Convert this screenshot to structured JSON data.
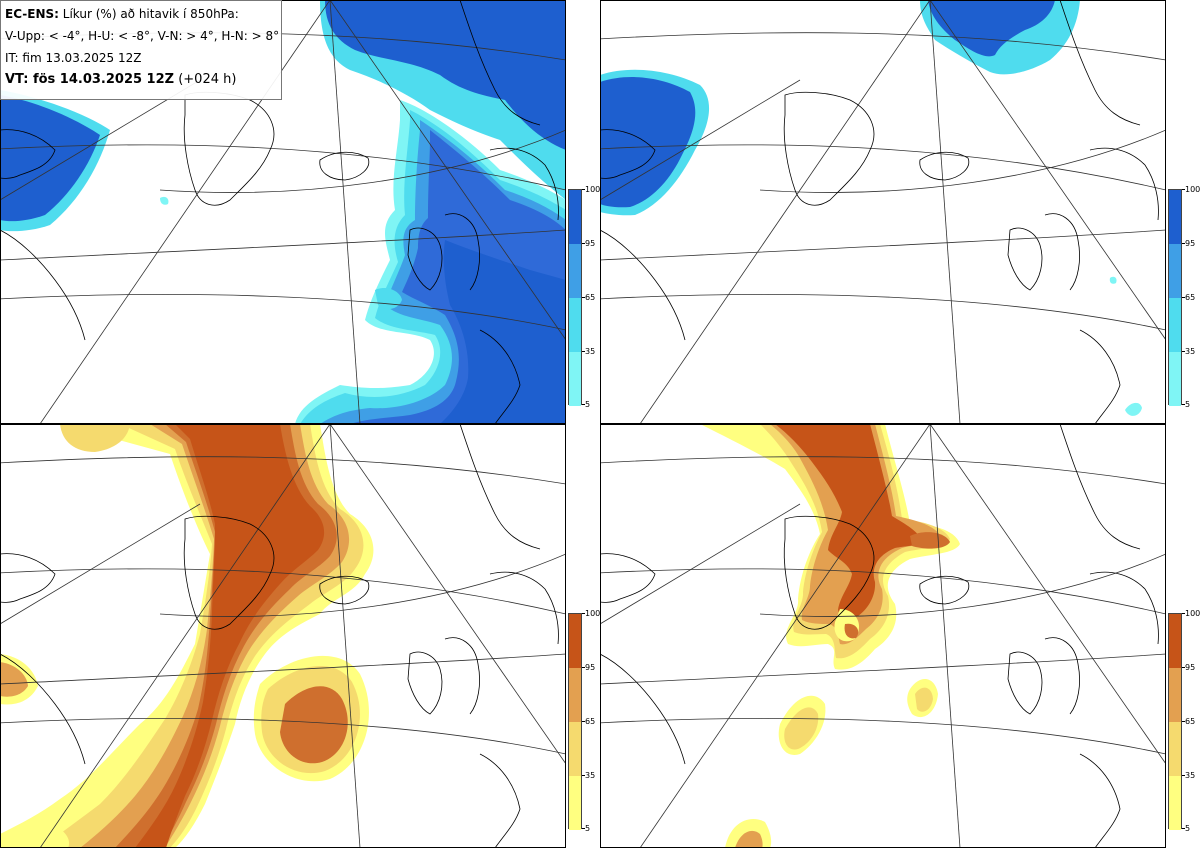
{
  "info": {
    "model": "EC-ENS:",
    "title": "Líkur (%) að hitavik í 850hPa:",
    "thresholds": "V-Upp: < -4°, H-U: < -8°, V-N: > 4°, H-N: > 8°",
    "init_time": "IT: fim 13.03.2025 12Z",
    "valid_label": "VT: fös 14.03.2025 12Z",
    "lead_time": "(+024 h)"
  },
  "legend": {
    "tick_labels": [
      "100",
      "95",
      "65",
      "35",
      "5"
    ]
  },
  "colors": {
    "cold": [
      "#7ff5f5",
      "#4fdcee",
      "#3f9fe6",
      "#2f6ad8",
      "#1e5fcf"
    ],
    "warm": [
      "#ffff80",
      "#f5da6e",
      "#e3a050",
      "#cf6f2e",
      "#c65418"
    ],
    "coast": "#000000",
    "grid": "#333333"
  },
  "panels": [
    {
      "id": "cold-4",
      "name": "V-Upp"
    },
    {
      "id": "cold-8",
      "name": "H-U"
    },
    {
      "id": "warm-4",
      "name": "V-N"
    },
    {
      "id": "warm-8",
      "name": "H-N"
    }
  ]
}
